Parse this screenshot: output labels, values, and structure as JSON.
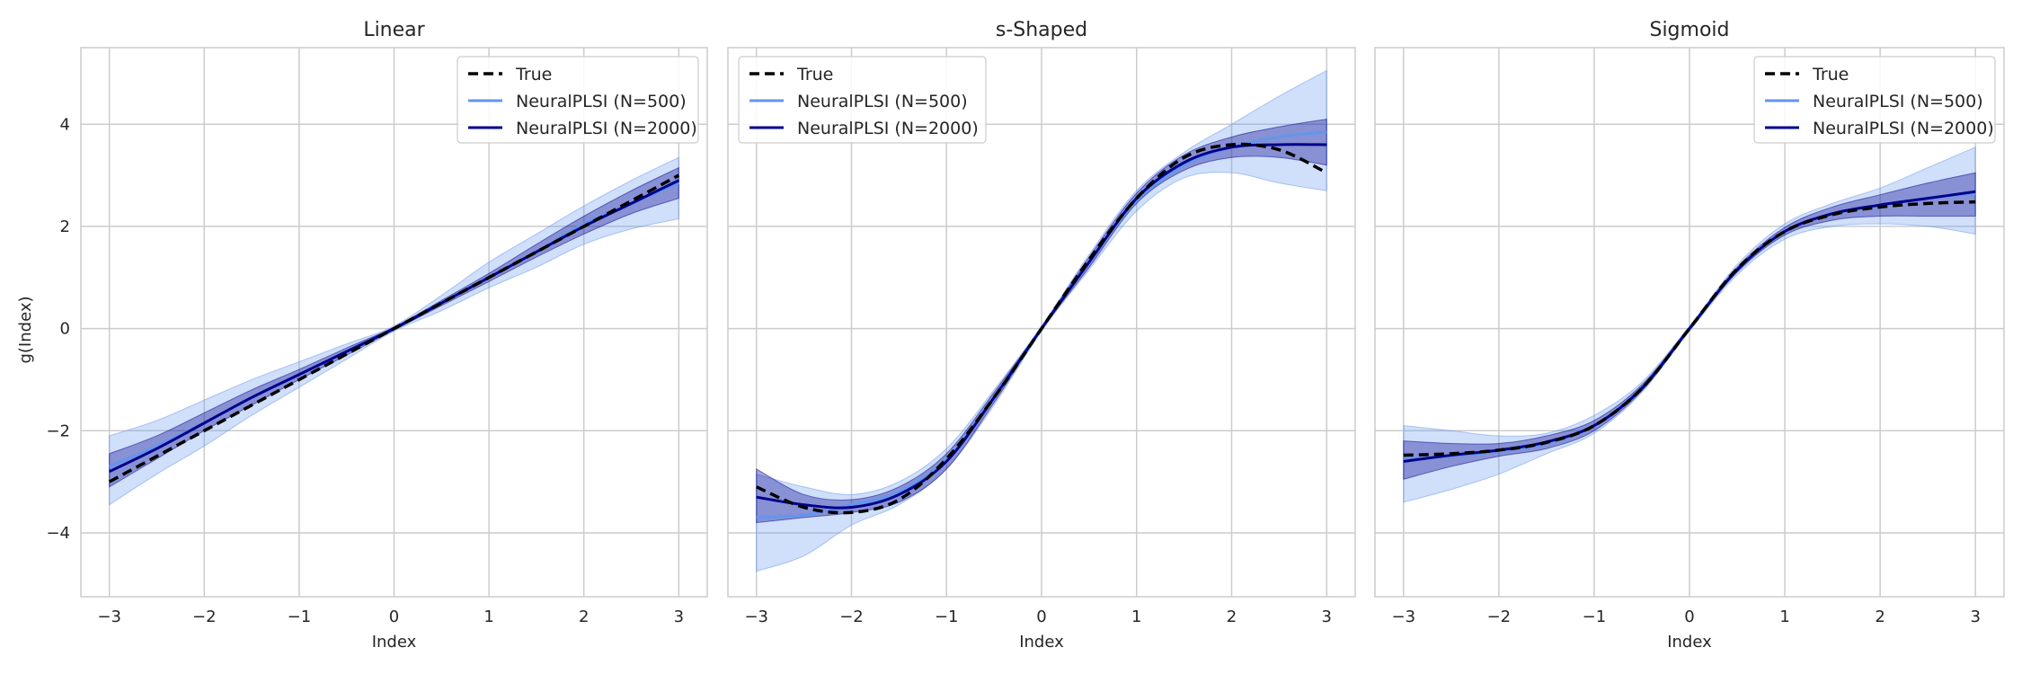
{
  "figure": {
    "ylabel": "g(Index)"
  },
  "colors": {
    "true": "#000000",
    "n500": "#6495ED",
    "n2000": "#00008B",
    "band500": "#6495ED",
    "band2000": "#00008B",
    "grid": "#cccccc"
  },
  "legend_labels": [
    "True",
    "NeuralPLSI (N=500)",
    "NeuralPLSI (N=2000)"
  ],
  "chart_data": [
    {
      "type": "line",
      "title": "Linear",
      "xlabel": "Index",
      "ylabel": "g(Index)",
      "xlim": [
        -3.3,
        3.3
      ],
      "ylim": [
        -5.25,
        5.5
      ],
      "xticks": [
        -3,
        -2,
        -1,
        0,
        1,
        2,
        3
      ],
      "xtick_labels": [
        "−3",
        "−2",
        "−1",
        "0",
        "1",
        "2",
        "3"
      ],
      "yticks": [
        -4,
        -2,
        0,
        2,
        4
      ],
      "ytick_labels": [
        "−4",
        "−2",
        "0",
        "2",
        "4"
      ],
      "grid": true,
      "legend_position": "top-right",
      "x": [
        -3,
        -2.5,
        -2,
        -1.5,
        -1,
        -0.5,
        0,
        0.5,
        1,
        1.5,
        2,
        2.5,
        3
      ],
      "series": [
        {
          "name": "True",
          "style": "dashed",
          "values": [
            -3.0,
            -2.5,
            -2.0,
            -1.5,
            -1.0,
            -0.5,
            0.0,
            0.5,
            1.0,
            1.5,
            2.0,
            2.5,
            3.0
          ]
        },
        {
          "name": "NeuralPLSI (N=500)",
          "style": "solid",
          "values": [
            -2.7,
            -2.3,
            -1.85,
            -1.35,
            -0.9,
            -0.45,
            0.0,
            0.5,
            1.0,
            1.5,
            2.05,
            2.45,
            2.85
          ]
        },
        {
          "name": "NeuralPLSI (N=2000)",
          "style": "solid",
          "values": [
            -2.8,
            -2.35,
            -1.85,
            -1.35,
            -0.9,
            -0.45,
            0.0,
            0.5,
            1.0,
            1.5,
            2.0,
            2.45,
            2.9
          ]
        }
      ],
      "bands": [
        {
          "name": "NeuralPLSI (N=500)",
          "lower": [
            -3.45,
            -2.85,
            -2.3,
            -1.7,
            -1.15,
            -0.6,
            -0.05,
            0.35,
            0.8,
            1.2,
            1.65,
            1.95,
            2.15
          ],
          "upper": [
            -2.1,
            -1.8,
            -1.4,
            -1.0,
            -0.65,
            -0.3,
            0.05,
            0.65,
            1.3,
            1.85,
            2.4,
            2.9,
            3.35
          ]
        },
        {
          "name": "NeuralPLSI (N=2000)",
          "lower": [
            -3.1,
            -2.55,
            -2.0,
            -1.5,
            -1.0,
            -0.52,
            -0.03,
            0.45,
            0.92,
            1.4,
            1.85,
            2.25,
            2.55
          ],
          "upper": [
            -2.45,
            -2.1,
            -1.65,
            -1.2,
            -0.8,
            -0.38,
            0.03,
            0.55,
            1.08,
            1.65,
            2.2,
            2.7,
            3.15
          ]
        }
      ]
    },
    {
      "type": "line",
      "title": "s-Shaped",
      "xlabel": "Index",
      "ylabel": "",
      "xlim": [
        -3.3,
        3.3
      ],
      "ylim": [
        -5.25,
        5.5
      ],
      "xticks": [
        -3,
        -2,
        -1,
        0,
        1,
        2,
        3
      ],
      "xtick_labels": [
        "−3",
        "−2",
        "−1",
        "0",
        "1",
        "2",
        "3"
      ],
      "yticks": [
        -4,
        -2,
        0,
        2,
        4
      ],
      "ytick_labels": [
        "",
        "",
        "",
        "",
        ""
      ],
      "grid": true,
      "legend_position": "top-left",
      "x": [
        -3,
        -2.5,
        -2,
        -1.5,
        -1,
        -0.5,
        0,
        0.5,
        1,
        1.5,
        2,
        2.5,
        3
      ],
      "series": [
        {
          "name": "True",
          "style": "dashed",
          "values": [
            -3.1,
            -3.5,
            -3.6,
            -3.35,
            -2.55,
            -1.35,
            0.0,
            1.35,
            2.55,
            3.35,
            3.6,
            3.5,
            3.05
          ]
        },
        {
          "name": "NeuralPLSI (N=500)",
          "style": "solid",
          "values": [
            -3.7,
            -3.65,
            -3.45,
            -3.2,
            -2.55,
            -1.35,
            0.0,
            1.3,
            2.5,
            3.2,
            3.55,
            3.75,
            3.85
          ]
        },
        {
          "name": "NeuralPLSI (N=2000)",
          "style": "solid",
          "values": [
            -3.3,
            -3.45,
            -3.5,
            -3.25,
            -2.6,
            -1.35,
            0.0,
            1.3,
            2.55,
            3.25,
            3.55,
            3.6,
            3.6
          ]
        }
      ],
      "bands": [
        {
          "name": "NeuralPLSI (N=500)",
          "lower": [
            -4.75,
            -4.45,
            -3.85,
            -3.45,
            -2.75,
            -1.5,
            -0.05,
            1.15,
            2.3,
            2.95,
            3.05,
            2.85,
            2.7
          ],
          "upper": [
            -2.85,
            -3.1,
            -3.25,
            -3.0,
            -2.35,
            -1.2,
            0.05,
            1.45,
            2.7,
            3.45,
            4.0,
            4.55,
            5.05
          ]
        },
        {
          "name": "NeuralPLSI (N=2000)",
          "lower": [
            -3.8,
            -3.7,
            -3.6,
            -3.4,
            -2.75,
            -1.45,
            -0.03,
            1.2,
            2.45,
            3.1,
            3.35,
            3.35,
            3.2
          ],
          "upper": [
            -2.75,
            -3.25,
            -3.35,
            -3.1,
            -2.45,
            -1.25,
            0.03,
            1.4,
            2.65,
            3.4,
            3.75,
            3.95,
            4.1
          ]
        }
      ]
    },
    {
      "type": "line",
      "title": "Sigmoid",
      "xlabel": "Index",
      "ylabel": "",
      "xlim": [
        -3.3,
        3.3
      ],
      "ylim": [
        -5.25,
        5.5
      ],
      "xticks": [
        -3,
        -2,
        -1,
        0,
        1,
        2,
        3
      ],
      "xtick_labels": [
        "−3",
        "−2",
        "−1",
        "0",
        "1",
        "2",
        "3"
      ],
      "yticks": [
        -4,
        -2,
        0,
        2,
        4
      ],
      "ytick_labels": [
        "",
        "",
        "",
        "",
        ""
      ],
      "grid": true,
      "legend_position": "top-right",
      "x": [
        -3,
        -2.5,
        -2,
        -1.5,
        -1,
        -0.5,
        0,
        0.5,
        1,
        1.5,
        2,
        2.5,
        3
      ],
      "series": [
        {
          "name": "True",
          "style": "dashed",
          "values": [
            -2.48,
            -2.45,
            -2.38,
            -2.23,
            -1.9,
            -1.17,
            0.0,
            1.17,
            1.9,
            2.23,
            2.38,
            2.45,
            2.48
          ]
        },
        {
          "name": "NeuralPLSI (N=500)",
          "style": "solid",
          "values": [
            -2.55,
            -2.5,
            -2.4,
            -2.25,
            -1.9,
            -1.17,
            0.0,
            1.15,
            1.9,
            2.25,
            2.4,
            2.55,
            2.65
          ]
        },
        {
          "name": "NeuralPLSI (N=2000)",
          "style": "solid",
          "values": [
            -2.6,
            -2.48,
            -2.38,
            -2.22,
            -1.9,
            -1.17,
            0.0,
            1.15,
            1.9,
            2.25,
            2.42,
            2.55,
            2.68
          ]
        }
      ],
      "bands": [
        {
          "name": "NeuralPLSI (N=500)",
          "lower": [
            -3.4,
            -3.15,
            -2.85,
            -2.45,
            -2.05,
            -1.25,
            -0.05,
            1.05,
            1.75,
            2.0,
            2.05,
            2.0,
            1.85
          ],
          "upper": [
            -1.9,
            -2.0,
            -2.1,
            -2.05,
            -1.7,
            -1.05,
            0.05,
            1.25,
            2.05,
            2.45,
            2.75,
            3.15,
            3.55
          ]
        },
        {
          "name": "NeuralPLSI (N=2000)",
          "lower": [
            -2.95,
            -2.7,
            -2.5,
            -2.35,
            -2.0,
            -1.22,
            -0.03,
            1.1,
            1.83,
            2.12,
            2.2,
            2.2,
            2.2
          ],
          "upper": [
            -2.2,
            -2.25,
            -2.25,
            -2.1,
            -1.8,
            -1.1,
            0.03,
            1.2,
            1.98,
            2.38,
            2.62,
            2.85,
            3.05
          ]
        }
      ]
    }
  ]
}
